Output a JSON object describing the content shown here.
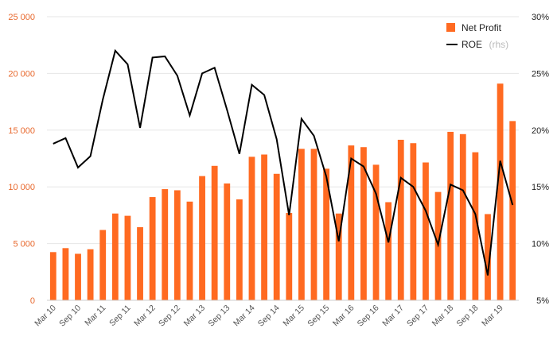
{
  "chart_data": {
    "type": "bar+line",
    "title": "",
    "xlabel": "",
    "ylabel": "",
    "categories": [
      "Mar 10",
      "Jun 10",
      "Sep 10",
      "Dec 10",
      "Mar 11",
      "Jun 11",
      "Sep 11",
      "Dec 11",
      "Mar 12",
      "Jun 12",
      "Sep 12",
      "Dec 12",
      "Mar 13",
      "Jun 13",
      "Sep 13",
      "Dec 13",
      "Mar 14",
      "Jun 14",
      "Sep 14",
      "Dec 14",
      "Mar 15",
      "Jun 15",
      "Sep 15",
      "Dec 15",
      "Mar 16",
      "Jun 16",
      "Sep 16",
      "Dec 16",
      "Mar 17",
      "Jun 17",
      "Sep 17",
      "Dec 17",
      "Mar 18",
      "Jun 18",
      "Sep 18",
      "Dec 18",
      "Mar 19",
      "Jun 19"
    ],
    "x_tick_labels": [
      "Mar 10",
      "Sep 10",
      "Mar 11",
      "Sep 11",
      "Mar 12",
      "Sep 12",
      "Mar 13",
      "Sep 13",
      "Mar 14",
      "Sep 14",
      "Mar 15",
      "Sep 15",
      "Mar 16",
      "Sep 16",
      "Mar 17",
      "Sep 17",
      "Mar 18",
      "Sep 18",
      "Mar 19"
    ],
    "series": [
      {
        "name": "Net Profit",
        "type": "bar",
        "axis": "left",
        "color": "#ff6a21",
        "values": [
          4250,
          4600,
          4100,
          4500,
          6200,
          7650,
          7450,
          6450,
          9100,
          9800,
          9700,
          8700,
          10950,
          11850,
          10300,
          8900,
          12650,
          12850,
          11150,
          7700,
          13350,
          13350,
          11600,
          7650,
          13650,
          13500,
          11950,
          8650,
          14150,
          13850,
          12150,
          9550,
          14850,
          14650,
          13050,
          7600,
          19100,
          15800
        ]
      },
      {
        "name": "ROE",
        "name_suffix": "(rhs)",
        "type": "line",
        "axis": "right",
        "color": "#000000",
        "values": [
          18.8,
          19.3,
          16.7,
          17.7,
          22.7,
          27.0,
          25.8,
          20.2,
          26.4,
          26.5,
          24.8,
          21.3,
          25.0,
          25.5,
          21.8,
          17.9,
          24.0,
          23.1,
          19.2,
          12.5,
          21.0,
          19.5,
          15.9,
          10.2,
          17.5,
          16.8,
          14.4,
          10.1,
          15.8,
          15.0,
          12.9,
          9.9,
          15.2,
          14.7,
          12.6,
          7.2,
          17.3,
          13.4
        ]
      }
    ],
    "y_left": {
      "min": 0,
      "max": 25000,
      "ticks": [
        0,
        5000,
        10000,
        15000,
        20000,
        25000
      ],
      "tick_labels": [
        "0",
        "5 000",
        "10 000",
        "15 000",
        "20 000",
        "25 000"
      ],
      "color": "#e8692e"
    },
    "y_right": {
      "min": 5,
      "max": 30,
      "ticks": [
        5,
        10,
        15,
        20,
        25,
        30
      ],
      "tick_labels": [
        "5%",
        "10%",
        "15%",
        "20%",
        "25%",
        "30%"
      ]
    },
    "grid": true,
    "legend_position": "top-right"
  }
}
